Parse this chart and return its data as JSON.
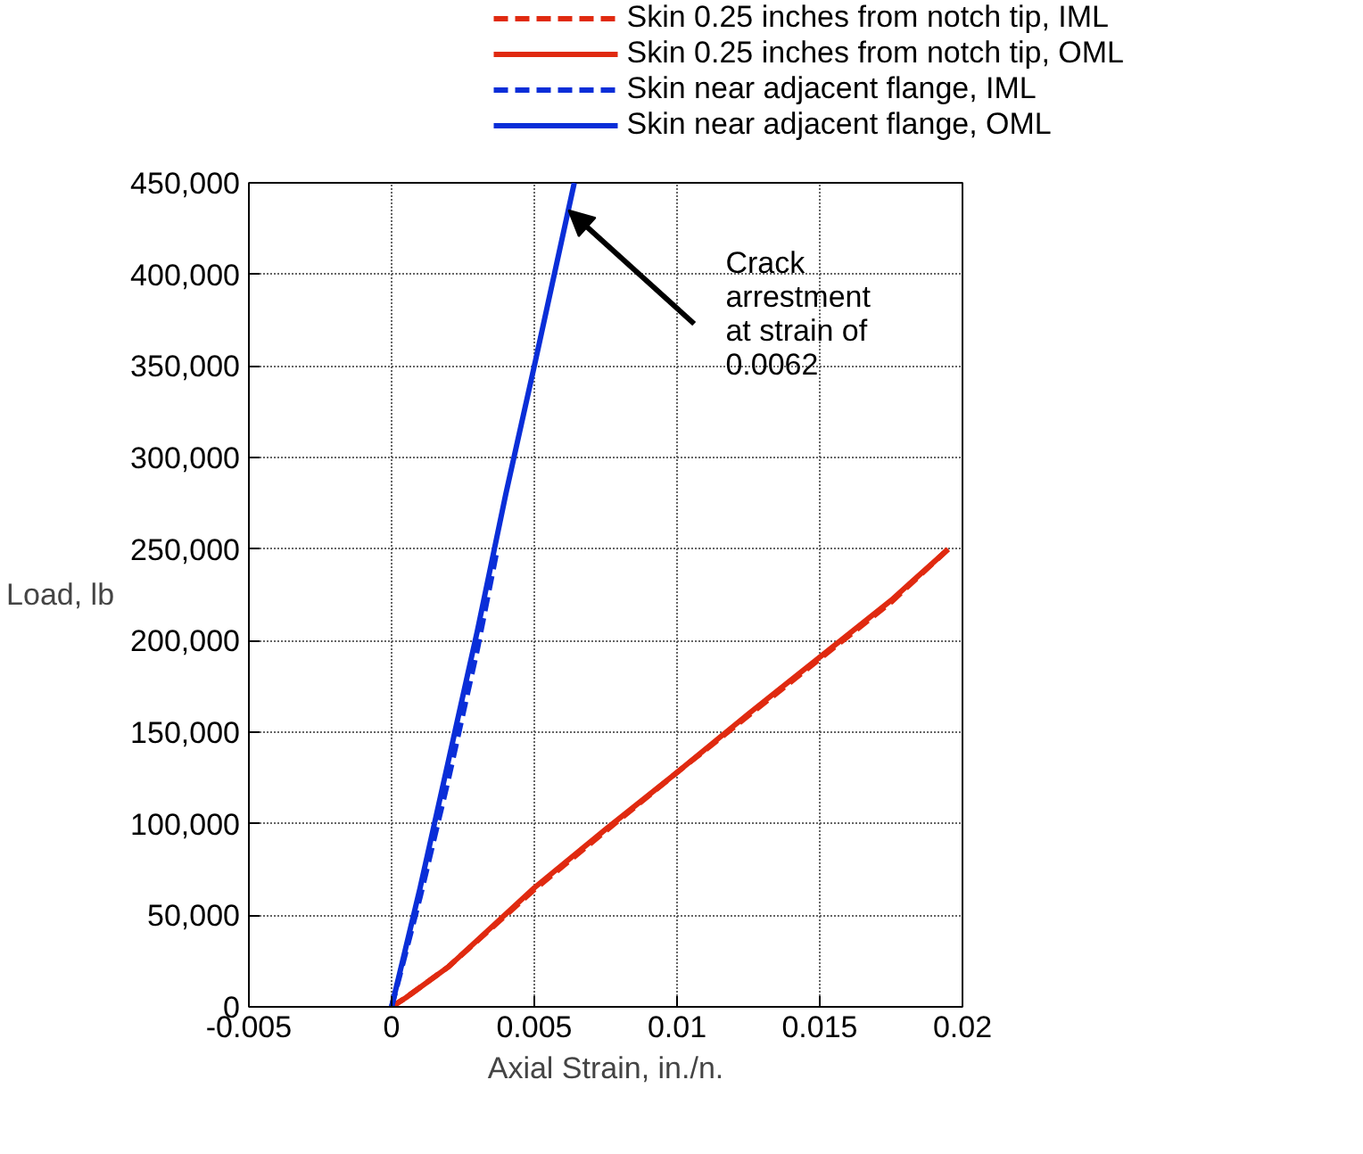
{
  "chart_data": {
    "type": "line",
    "xlabel": "Axial Strain, in./n.",
    "ylabel": "Load, lb",
    "xlim": [
      -0.005,
      0.02
    ],
    "xticks": [
      -0.005,
      0,
      0.005,
      0.01,
      0.015,
      0.02
    ],
    "ylim": [
      0,
      450000
    ],
    "yticks": [
      {
        "value": 0,
        "label": "0"
      },
      {
        "value": 50000,
        "label": "50,000"
      },
      {
        "value": 100000,
        "label": "100,000"
      },
      {
        "value": 150000,
        "label": "150,000"
      },
      {
        "value": 200000,
        "label": "200,000"
      },
      {
        "value": 250000,
        "label": "250,000"
      },
      {
        "value": 300000,
        "label": "300,000"
      },
      {
        "value": 350000,
        "label": "350,000"
      },
      {
        "value": 400000,
        "label": "400,000"
      },
      {
        "value": 450000,
        "label": "450,000"
      }
    ],
    "grid": true,
    "legend": "top right",
    "series": [
      {
        "name": "Skin 0.25 inches from notch tip, IML",
        "color": "#e02a10",
        "line_style": "dashed",
        "x": [
          0,
          0.0005,
          0.002,
          0.005,
          0.0075,
          0.01,
          0.0125,
          0.015,
          0.0175,
          0.0195
        ],
        "values": [
          0,
          5000,
          22000,
          64000,
          96000,
          128000,
          159000,
          190000,
          221000,
          250000
        ]
      },
      {
        "name": "Skin 0.25 inches from notch tip, OML",
        "color": "#e02a10",
        "line_style": "solid",
        "x": [
          0,
          0.0005,
          0.002,
          0.005,
          0.0075,
          0.01,
          0.0125,
          0.015,
          0.0175,
          0.0195
        ],
        "values": [
          0,
          5000,
          22000,
          65000,
          97000,
          128000,
          160000,
          191000,
          222000,
          250000
        ]
      },
      {
        "name": "Skin near adjacent flange, IML",
        "color": "#0a2ed8",
        "line_style": "dashed",
        "x": [
          0,
          0.001,
          0.002,
          0.003,
          0.0037
        ],
        "values": [
          0,
          60000,
          125000,
          195000,
          250000
        ]
      },
      {
        "name": "Skin near adjacent flange, OML",
        "color": "#0a2ed8",
        "line_style": "solid",
        "x": [
          0,
          0.001,
          0.002,
          0.003,
          0.004,
          0.005,
          0.0064
        ],
        "values": [
          0,
          65000,
          135000,
          205000,
          280000,
          350000,
          450000
        ]
      }
    ],
    "annotations": [
      {
        "text": "Crack\narrestment\nat strain of\n0.0062",
        "x": 0.0062,
        "y": 435000
      }
    ]
  }
}
